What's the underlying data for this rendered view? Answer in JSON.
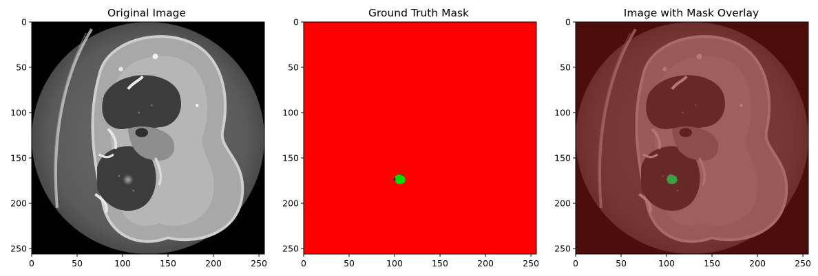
{
  "figure": {
    "panels": [
      {
        "id": "original",
        "title": "Original Image"
      },
      {
        "id": "mask",
        "title": "Ground Truth Mask"
      },
      {
        "id": "overlay",
        "title": "Image with Mask Overlay"
      }
    ],
    "axis": {
      "x_ticks": [
        0,
        50,
        100,
        150,
        200,
        250
      ],
      "y_ticks": [
        0,
        50,
        100,
        150,
        200,
        250
      ],
      "xlim": [
        0,
        256
      ],
      "ylim": [
        256,
        0
      ]
    },
    "colors": {
      "mask_background": "#ff0000",
      "mask_lesion": "#00dd00",
      "overlay_tint": "#8a1a12",
      "scan_background": "#000000"
    }
  }
}
